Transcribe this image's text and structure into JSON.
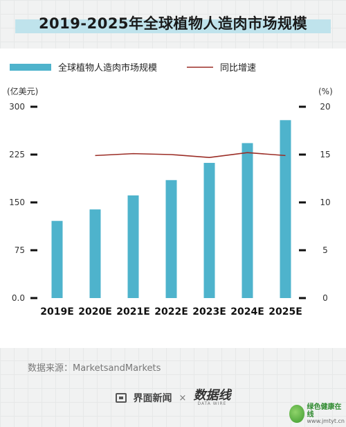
{
  "title": "2019-2025年全球植物人造肉市场规模",
  "source": "数据来源：MarketsandMarkets",
  "footer": {
    "brand": "界面新闻",
    "times": "×",
    "logo_big": "数据线",
    "logo_small": "DATA WIRE"
  },
  "watermark": {
    "name": "绿色健康在线",
    "url": "www.jmtyt.cn"
  },
  "colors": {
    "bar": "#4eb3cc",
    "line": "#9b2d26",
    "title_band": "#bfe3ec",
    "axis_tick": "#111111"
  },
  "chart_data": {
    "type": "bar",
    "categories": [
      "2019E",
      "2020E",
      "2021E",
      "2022E",
      "2023E",
      "2024E",
      "2025E"
    ],
    "series": [
      {
        "name": "全球植物人造肉市场规模",
        "type": "bar",
        "axis": "left",
        "values": [
          121,
          139,
          161,
          185,
          212,
          243,
          279
        ]
      },
      {
        "name": "同比增速",
        "type": "line",
        "axis": "right",
        "values": [
          null,
          14.9,
          15.1,
          15.0,
          14.7,
          15.2,
          14.9
        ]
      }
    ],
    "y_left": {
      "unit": "(亿美元)",
      "lim": [
        0,
        300
      ],
      "ticks": [
        "0.0",
        "75",
        "150",
        "225",
        "300"
      ]
    },
    "y_right": {
      "unit": "(%)",
      "lim": [
        0,
        20
      ],
      "ticks": [
        "0",
        "5",
        "10",
        "15",
        "20"
      ]
    },
    "legend": {
      "position": "top-left"
    },
    "grid": false
  }
}
